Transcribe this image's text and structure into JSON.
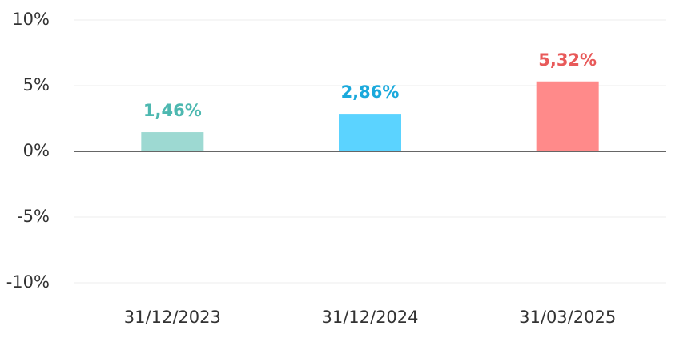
{
  "chart_data": {
    "type": "bar",
    "categories": [
      "31/12/2023",
      "31/12/2024",
      "31/03/2025"
    ],
    "values": [
      1.46,
      2.86,
      5.32
    ],
    "value_labels": [
      "1,46%",
      "2,86%",
      "5,32%"
    ],
    "colors": [
      "#9dd9d2",
      "#5bd3ff",
      "#ff8a8a"
    ],
    "label_colors": [
      "#4db8b0",
      "#1aa9dc",
      "#e85a5a"
    ],
    "ylim": [
      -10,
      10
    ],
    "yticks": [
      {
        "value": -10,
        "label": "-10%"
      },
      {
        "value": -5,
        "label": "-5%"
      },
      {
        "value": 0,
        "label": "0%"
      },
      {
        "value": 5,
        "label": "5%"
      },
      {
        "value": 10,
        "label": "10%"
      }
    ],
    "grid": true
  }
}
